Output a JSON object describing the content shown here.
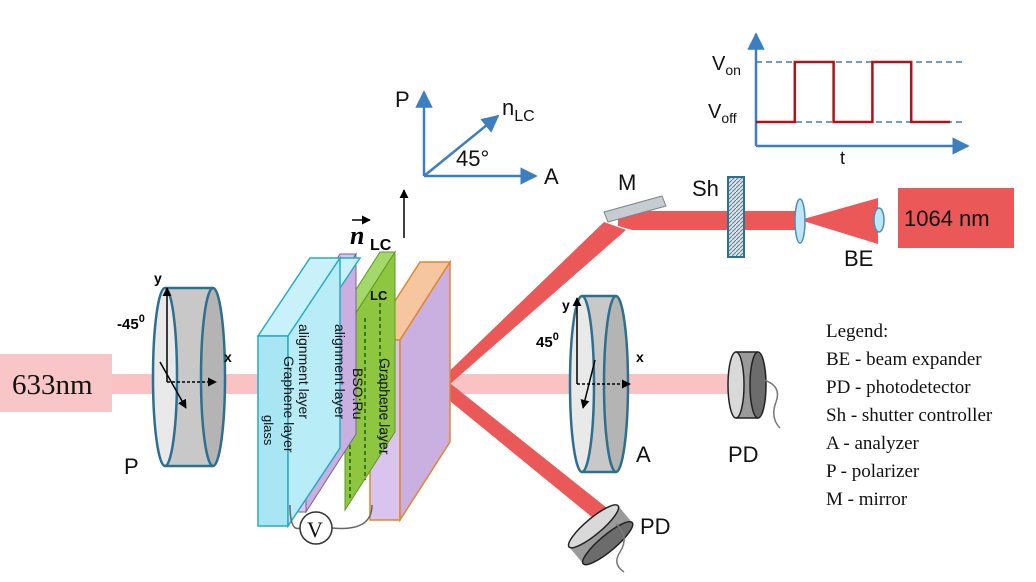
{
  "lasers": {
    "probe_label": "633nm",
    "pump_label": "1064 nm"
  },
  "labels": {
    "P": "P",
    "A": "A",
    "M": "M",
    "Sh": "Sh",
    "BE": "BE",
    "PD1": "PD",
    "PD2": "PD",
    "LC": "LC",
    "V": "V",
    "nlc_vec": "n",
    "nlc_sub": "LC",
    "x": "x",
    "y": "y"
  },
  "polarizer": {
    "angle_label": "-45",
    "deg": "0"
  },
  "analyzer": {
    "angle_label": "45",
    "deg": "0"
  },
  "axes_inset": {
    "P": "P",
    "n": "n",
    "n_sub": "LC",
    "A": "A",
    "angle": "45°"
  },
  "cell_layers": [
    "glass",
    "Graphene layer",
    "alignment layer",
    "alignment layer",
    "BSO:Ru",
    "Graphene layer"
  ],
  "waveform": {
    "von": "V",
    "von_sub": "on",
    "voff": "V",
    "voff_sub": "off",
    "t": "t",
    "levels": [
      "off",
      "on",
      "off",
      "on",
      "off"
    ]
  },
  "legend": {
    "title": "Legend:",
    "items": [
      "BE - beam expander",
      "PD - photodetector",
      "Sh - shutter controller",
      "A - analyzer",
      "P - polarizer",
      "M - mirror"
    ]
  },
  "colors": {
    "probe_beam": "#f9c3c3",
    "pump_beam": "#ea5858",
    "optic_rim": "#2e6f8e",
    "lens": "#bfe6f7",
    "glass": "#a8e6f3",
    "graphene": "#c9b0e0",
    "lc": "#8ec63f",
    "arrow": "#3d7ebf",
    "signal": "#b0121a"
  }
}
